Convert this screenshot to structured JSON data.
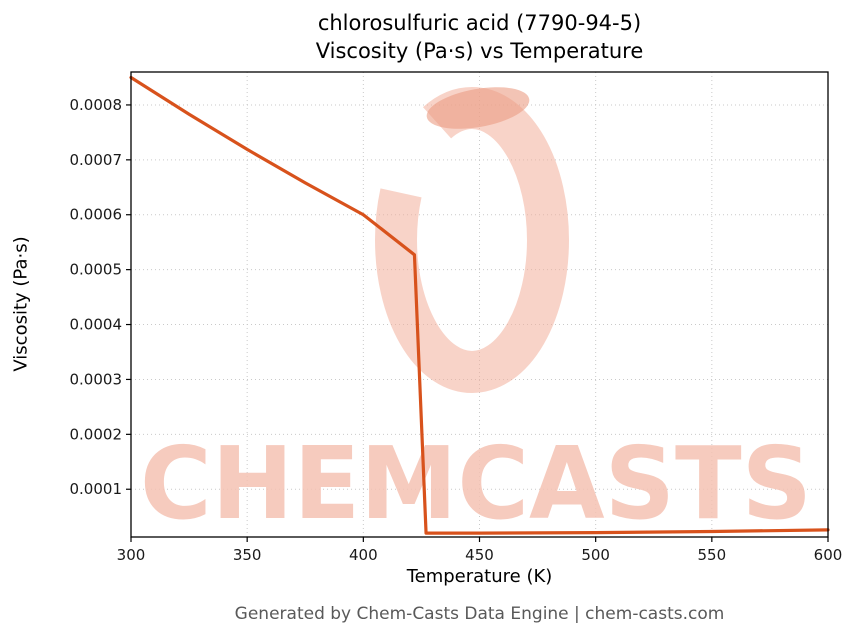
{
  "header": {
    "title": "chlorosulfuric acid (7790-94-5)",
    "subtitle": "Viscosity (Pa·s) vs Temperature"
  },
  "footer": {
    "text": "Generated by Chem-Casts Data Engine | chem-casts.com"
  },
  "watermark": {
    "text": "CHEMCASTS"
  },
  "colors": {
    "line": "#d8521c",
    "watermark_text": "#f5c2b3",
    "logo_ring": "#f2ae9b",
    "logo_blob": "#eb9c84",
    "grid": "#c9c9c9",
    "axis": "#000000"
  },
  "chart_data": {
    "type": "line",
    "title": "chlorosulfuric acid (7790-94-5) — Viscosity (Pa·s) vs Temperature",
    "xlabel": "Temperature (K)",
    "ylabel": "Viscosity (Pa·s)",
    "xlim": [
      300,
      600
    ],
    "ylim": [
      1.3e-05,
      0.00086
    ],
    "xticks": [
      300,
      350,
      400,
      450,
      500,
      550,
      600
    ],
    "yticks": [
      0.0001,
      0.0002,
      0.0003,
      0.0004,
      0.0005,
      0.0006,
      0.0007,
      0.0008
    ],
    "grid": true,
    "legend": "none",
    "series": [
      {
        "name": "viscosity",
        "points": [
          [
            300,
            0.00085
          ],
          [
            325,
            0.000783
          ],
          [
            350,
            0.000719
          ],
          [
            375,
            0.000658
          ],
          [
            400,
            0.0006
          ],
          [
            422,
            0.000527
          ],
          [
            427,
            2e-05
          ],
          [
            450,
            2e-05
          ],
          [
            500,
            2.1e-05
          ],
          [
            550,
            2.3e-05
          ],
          [
            600,
            2.6e-05
          ]
        ]
      }
    ]
  }
}
